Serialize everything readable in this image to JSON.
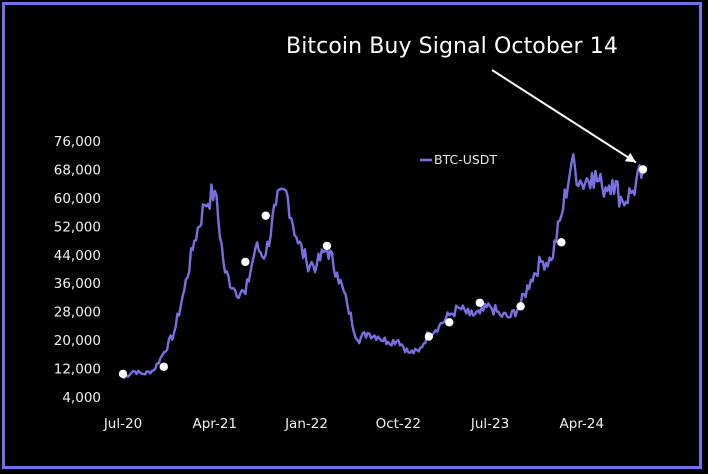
{
  "colors": {
    "frame": "#6f72e6",
    "line": "#7a6fe0",
    "background": "#000000",
    "marker": "#ffffff"
  },
  "chart_data": {
    "type": "line",
    "title": "Bitcoin Buy Signal October 14",
    "xlabel": "",
    "ylabel": "",
    "ylim": [
      4000,
      76000
    ],
    "xlim": [
      "2020-07",
      "2024-10"
    ],
    "y_ticks": [
      "76,000",
      "68,000",
      "60,000",
      "52,000",
      "44,000",
      "36,000",
      "28,000",
      "20,000",
      "12,000",
      "4,000"
    ],
    "x_ticks": [
      "Jul-20",
      "Apr-21",
      "Jan-22",
      "Oct-22",
      "Jul-23",
      "Apr-24"
    ],
    "legend": {
      "position": "top-right",
      "entries": [
        "BTC-USDT"
      ]
    },
    "grid": false,
    "series": [
      {
        "name": "BTC-USDT",
        "x": [
          "2020-07",
          "2020-08",
          "2020-09",
          "2020-10",
          "2020-11",
          "2020-12",
          "2021-01",
          "2021-02",
          "2021-03",
          "2021-04",
          "2021-05",
          "2021-06",
          "2021-07",
          "2021-08",
          "2021-09",
          "2021-10",
          "2021-11",
          "2021-12",
          "2022-01",
          "2022-02",
          "2022-03",
          "2022-04",
          "2022-05",
          "2022-06",
          "2022-07",
          "2022-08",
          "2022-09",
          "2022-10",
          "2022-11",
          "2022-12",
          "2023-01",
          "2023-02",
          "2023-03",
          "2023-04",
          "2023-05",
          "2023-06",
          "2023-07",
          "2023-08",
          "2023-09",
          "2023-10",
          "2023-11",
          "2023-12",
          "2024-01",
          "2024-02",
          "2024-03",
          "2024-04",
          "2024-05",
          "2024-06",
          "2024-07",
          "2024-08",
          "2024-09",
          "2024-10"
        ],
        "values": [
          9200,
          11300,
          10500,
          11500,
          16500,
          22000,
          34000,
          48000,
          58000,
          62000,
          39000,
          34000,
          33000,
          46000,
          44000,
          58000,
          62000,
          49000,
          42000,
          41000,
          46000,
          39000,
          30000,
          20000,
          22000,
          21000,
          19500,
          20000,
          16500,
          16800,
          22000,
          24000,
          27000,
          29000,
          27000,
          27500,
          29500,
          27000,
          26500,
          30000,
          37000,
          42000,
          42500,
          55000,
          70000,
          64000,
          67000,
          63000,
          65000,
          59000,
          62000,
          67500
        ]
      }
    ],
    "signals": [
      {
        "x": "2020-07",
        "y": 10500
      },
      {
        "x": "2020-11",
        "y": 12500
      },
      {
        "x": "2021-07",
        "y": 42000
      },
      {
        "x": "2021-09",
        "y": 55000
      },
      {
        "x": "2022-03",
        "y": 46500
      },
      {
        "x": "2023-01",
        "y": 21000
      },
      {
        "x": "2023-03",
        "y": 25000
      },
      {
        "x": "2023-06",
        "y": 30500
      },
      {
        "x": "2023-10",
        "y": 29500
      },
      {
        "x": "2024-02",
        "y": 47500
      },
      {
        "x": "2024-10",
        "y": 68000
      }
    ]
  }
}
